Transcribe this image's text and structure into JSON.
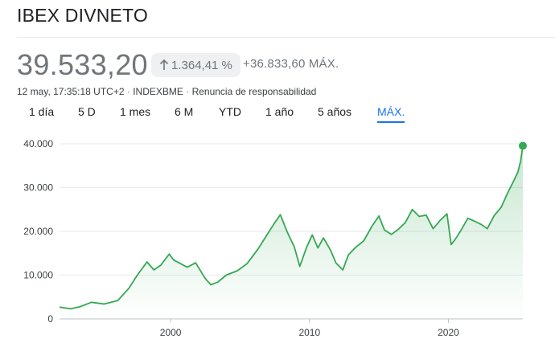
{
  "header": {
    "title": "IBEX DIVNETO"
  },
  "quote": {
    "price": "39.533,20",
    "percent_change": "1.364,41 %",
    "abs_change": "+36.833,60 MÁX.",
    "timestamp": "12 may, 17:35:18 UTC+2",
    "exchange": "INDEXBME",
    "disclaimer": "Renuncia de responsabilidad",
    "separator": " · "
  },
  "tabs": [
    {
      "label": "1 día",
      "active": false
    },
    {
      "label": "5 D",
      "active": false
    },
    {
      "label": "1 mes",
      "active": false
    },
    {
      "label": "6 M",
      "active": false
    },
    {
      "label": "YTD",
      "active": false
    },
    {
      "label": "1 año",
      "active": false
    },
    {
      "label": "5 años",
      "active": false
    },
    {
      "label": "MÁX.",
      "active": true
    }
  ],
  "colors": {
    "line": "#34a853",
    "accent": "#1a73e8",
    "grid": "#e8eaed"
  },
  "icons": {
    "change_arrow": "arrow-up-icon"
  },
  "chart_data": {
    "type": "area",
    "y_ticks": [
      "0",
      "10.000",
      "20.000",
      "30.000",
      "40.000"
    ],
    "y_tick_values": [
      0,
      10000,
      20000,
      30000,
      40000
    ],
    "ylim": [
      0,
      40000
    ],
    "x_ticks": [
      "2000",
      "2010",
      "2020"
    ],
    "x_tick_values": [
      2000,
      2010,
      2020
    ],
    "xlim": [
      1992.0,
      2025.36
    ],
    "series": [
      {
        "x": [
          1992.0,
          1992.8,
          1993.5,
          1994.3,
          1995.2,
          1996.2,
          1997.0,
          1997.6,
          1998.3,
          1998.8,
          1999.3,
          1999.9,
          2000.2,
          2000.6,
          2001.2,
          2001.8,
          2002.5,
          2002.9,
          2003.4,
          2004.0,
          2004.8,
          2005.5,
          2006.3,
          2006.9,
          2007.4,
          2007.9,
          2008.4,
          2008.9,
          2009.3,
          2009.8,
          2010.2,
          2010.6,
          2011.0,
          2011.5,
          2011.9,
          2012.4,
          2012.8,
          2013.3,
          2013.9,
          2014.5,
          2015.0,
          2015.4,
          2015.9,
          2016.4,
          2016.9,
          2017.4,
          2017.9,
          2018.4,
          2018.9,
          2019.4,
          2019.9,
          2020.2,
          2020.5,
          2020.9,
          2021.4,
          2021.9,
          2022.4,
          2022.8,
          2023.3,
          2023.8,
          2024.3,
          2024.7,
          2025.0,
          2025.2,
          2025.36
        ],
        "y": [
          2700,
          2300,
          2800,
          3800,
          3400,
          4200,
          7000,
          10000,
          13000,
          11200,
          12300,
          14800,
          13500,
          12800,
          11800,
          12800,
          9200,
          7800,
          8400,
          10000,
          11000,
          12600,
          16000,
          19000,
          21500,
          23800,
          19800,
          16500,
          12000,
          16400,
          19200,
          16200,
          18500,
          15800,
          12800,
          11200,
          14600,
          16300,
          17800,
          21200,
          23500,
          20300,
          19300,
          20500,
          22000,
          25000,
          23400,
          23700,
          20600,
          22500,
          24000,
          17000,
          18200,
          20200,
          23000,
          22300,
          21500,
          20600,
          23600,
          25500,
          29000,
          31500,
          33500,
          36000,
          39533
        ]
      }
    ],
    "end_marker": {
      "x": 2025.36,
      "y": 39533
    }
  }
}
